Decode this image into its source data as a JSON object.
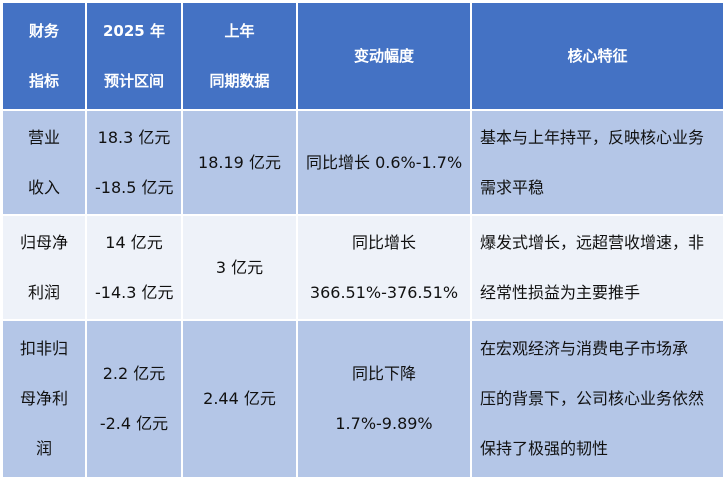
{
  "table": {
    "header": [
      [
        "财务",
        "指标"
      ],
      [
        "2025 年",
        "预计区间"
      ],
      [
        "上年",
        "同期数据"
      ],
      [
        "变动幅度"
      ],
      [
        "核心特征"
      ]
    ],
    "rows": [
      [
        [
          "营业",
          "收入"
        ],
        [
          "18.3 亿元",
          "-18.5 亿元"
        ],
        [
          "18.19 亿元"
        ],
        [
          "同比增长 0.6%-1.7%"
        ],
        [
          "基本与上年持平，反映核心业务",
          "需求平稳"
        ]
      ],
      [
        [
          "归母净",
          "利润"
        ],
        [
          "14 亿元",
          "-14.3 亿元"
        ],
        [
          "3 亿元"
        ],
        [
          "同比增长",
          "366.51%-376.51%"
        ],
        [
          "爆发式增长，远超营收增速，非",
          "经常性损益为主要推手"
        ]
      ],
      [
        [
          "扣非归",
          "母净利",
          "润"
        ],
        [
          "2.2 亿元",
          "-2.4 亿元"
        ],
        [
          "2.44 亿元"
        ],
        [
          "同比下降",
          "1.7%-9.89%"
        ],
        [
          "在宏观经济与消费电子市场承",
          "压的背景下，公司核心业务依然",
          "保持了极强的韧性"
        ]
      ]
    ]
  }
}
